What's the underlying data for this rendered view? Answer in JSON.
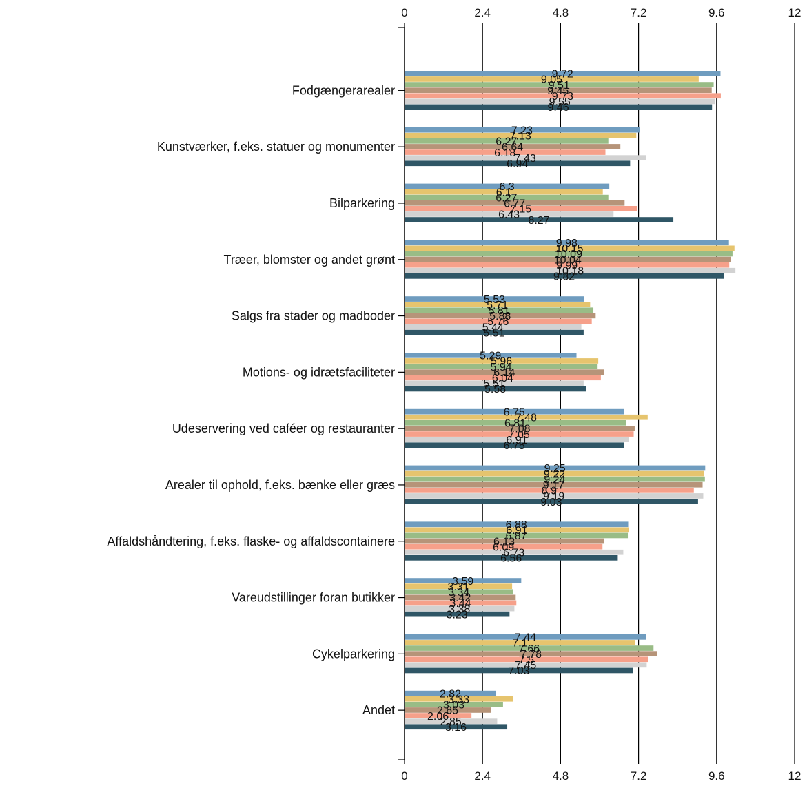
{
  "chart_data": {
    "type": "bar",
    "orientation": "horizontal",
    "xlim": [
      0,
      12
    ],
    "ticks": [
      "0",
      "2.4",
      "4.8",
      "7.2",
      "9.6",
      "12"
    ],
    "grid": true,
    "categories": [
      "Fodgængerarealer",
      "Kunstværker, f.eks. statuer og monumenter",
      "Bilparkering",
      "Træer, blomster og andet grønt",
      "Salgs fra stader og madboder",
      "Motions- og idrætsfaciliteter",
      "Udeservering ved caféer og restauranter",
      "Arealer til ophold, f.eks. bænke eller græs",
      "Affaldshåndtering, f.eks. flaske- og affaldscontainere",
      "Vareudstillinger foran butikker",
      "Cykelparkering",
      "Andet"
    ],
    "series": [
      {
        "color": "#6f9cbf",
        "values": [
          9.72,
          7.23,
          6.3,
          9.98,
          5.53,
          5.29,
          6.75,
          9.25,
          6.88,
          3.59,
          7.44,
          2.82
        ]
      },
      {
        "color": "#e6c46e",
        "values": [
          9.05,
          7.13,
          6.1,
          10.15,
          5.71,
          5.96,
          7.48,
          9.22,
          6.91,
          3.31,
          7.1,
          3.33
        ]
      },
      {
        "color": "#99bc86",
        "values": [
          9.51,
          6.27,
          6.27,
          10.09,
          5.81,
          5.94,
          6.81,
          9.24,
          6.87,
          3.34,
          7.66,
          3.03
        ]
      },
      {
        "color": "#b69479",
        "values": [
          9.45,
          6.64,
          6.77,
          10.04,
          5.88,
          6.14,
          7.08,
          9.17,
          6.13,
          3.42,
          7.78,
          2.65
        ]
      },
      {
        "color": "#f6a08a",
        "values": [
          9.73,
          6.18,
          7.15,
          9.99,
          5.76,
          6.04,
          7.05,
          8.9,
          6.09,
          3.44,
          7.5,
          2.06
        ]
      },
      {
        "color": "#d2d2d2",
        "values": [
          9.55,
          7.43,
          6.43,
          10.18,
          5.44,
          5.51,
          6.91,
          9.19,
          6.73,
          3.38,
          7.45,
          2.85
        ]
      },
      {
        "color": "#2f5666",
        "values": [
          9.46,
          6.94,
          8.27,
          9.82,
          5.51,
          5.58,
          6.75,
          9.03,
          6.56,
          3.23,
          7.03,
          3.16
        ]
      }
    ]
  }
}
